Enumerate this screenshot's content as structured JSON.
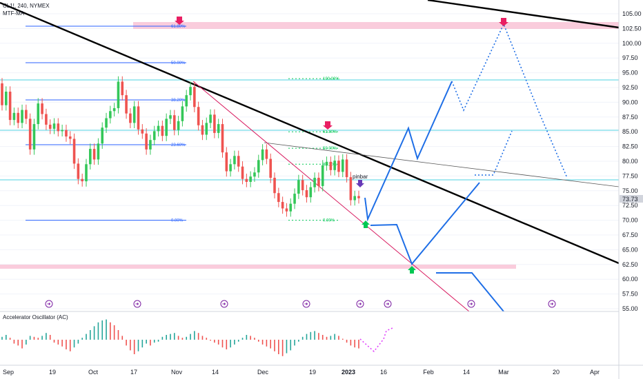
{
  "header": {
    "symbol": "CL1!, 240, NYMEX",
    "indicator": "MTF-MA"
  },
  "oscillator": {
    "title": "Accelerator Oscillator (AC)"
  },
  "price_tag": "73.73",
  "annotation": "pinbar",
  "colors": {
    "up": "#26a69a",
    "up_bright": "#34c759",
    "down": "#ef5350",
    "trend": "#000000",
    "channel": "#d81b60",
    "projection": "#1e6ee6",
    "fib_blue": "#2962ff",
    "fib_green": "#00c853",
    "cyan": "#4dd0e1",
    "zone": "#f8bbd0",
    "marker_pink": "#e91e63",
    "marker_purple": "#673ab7"
  },
  "fib_left": [
    {
      "label": "61.80%",
      "price": 102.9
    },
    {
      "label": "50.00%",
      "price": 96.7
    },
    {
      "label": "38.20%",
      "price": 90.4
    },
    {
      "label": "23.60%",
      "price": 82.8
    },
    {
      "label": "0.00%",
      "price": 70.0
    }
  ],
  "fib_right": [
    {
      "label": "100.00%",
      "price": 94.0
    },
    {
      "label": "61.80%",
      "price": 85.0
    },
    {
      "label": "50.00%",
      "price": 82.2
    },
    {
      "label": "38.20%",
      "price": 79.5
    },
    {
      "label": "0.00%",
      "price": 70.0
    }
  ],
  "chart_data": {
    "type": "candlestick",
    "y_ticks": [
      "105.00",
      "102.50",
      "100.00",
      "97.50",
      "95.00",
      "92.50",
      "90.00",
      "87.50",
      "85.00",
      "82.50",
      "80.00",
      "77.50",
      "75.00",
      "72.50",
      "70.00",
      "67.50",
      "65.00",
      "62.50",
      "60.00",
      "57.50",
      "55.00"
    ],
    "ylim": [
      55,
      107
    ],
    "x_ticks": [
      "Sep",
      "19",
      "Oct",
      "17",
      "Nov",
      "14",
      "Dec",
      "19",
      "2023",
      "16",
      "Feb",
      "14",
      "Mar",
      "20",
      "Apr"
    ],
    "last_price": 73.73,
    "candles": [
      [
        93.2,
        89.5
      ],
      [
        89.5,
        91.8
      ],
      [
        91.8,
        87.0
      ],
      [
        87.0,
        88.2
      ],
      [
        88.2,
        86.5
      ],
      [
        86.5,
        88.7
      ],
      [
        88.7,
        87.2
      ],
      [
        87.2,
        82.0
      ],
      [
        82.0,
        86.3
      ],
      [
        86.3,
        89.8
      ],
      [
        89.8,
        88.0
      ],
      [
        88.0,
        86.2
      ],
      [
        86.2,
        85.5
      ],
      [
        85.5,
        86.4
      ],
      [
        86.4,
        85.1
      ],
      [
        85.1,
        85.3
      ],
      [
        85.3,
        84.2
      ],
      [
        84.2,
        83.8
      ],
      [
        83.8,
        79.6
      ],
      [
        79.6,
        77.0
      ],
      [
        77.0,
        76.6
      ],
      [
        76.6,
        79.5
      ],
      [
        79.5,
        82.1
      ],
      [
        82.1,
        80.3
      ],
      [
        80.3,
        83.0
      ],
      [
        83.0,
        85.7
      ],
      [
        85.7,
        87.3
      ],
      [
        87.3,
        88.5
      ],
      [
        88.5,
        89.0
      ],
      [
        89.0,
        93.5
      ],
      [
        93.5,
        91.2
      ],
      [
        91.2,
        88.1
      ],
      [
        88.1,
        86.5
      ],
      [
        86.5,
        89.3
      ],
      [
        89.3,
        85.4
      ],
      [
        85.4,
        84.7
      ],
      [
        84.7,
        82.0
      ],
      [
        82.0,
        83.6
      ],
      [
        83.6,
        85.1
      ],
      [
        85.1,
        86.0
      ],
      [
        86.0,
        84.3
      ],
      [
        84.3,
        87.2
      ],
      [
        87.2,
        87.8
      ],
      [
        87.8,
        85.3
      ],
      [
        85.3,
        86.8
      ],
      [
        86.8,
        89.3
      ],
      [
        89.3,
        91.2
      ],
      [
        91.2,
        92.6
      ],
      [
        92.6,
        89.2
      ],
      [
        89.2,
        86.1
      ],
      [
        86.1,
        84.5
      ],
      [
        84.5,
        86.5
      ],
      [
        86.5,
        87.9
      ],
      [
        87.9,
        84.8
      ],
      [
        84.8,
        86.3
      ],
      [
        86.3,
        81.5
      ],
      [
        81.5,
        78.3
      ],
      [
        78.3,
        79.5
      ],
      [
        79.5,
        80.9
      ],
      [
        80.9,
        79.1
      ],
      [
        79.1,
        77.0
      ],
      [
        77.0,
        76.5
      ],
      [
        76.5,
        77.4
      ],
      [
        77.4,
        78.1
      ],
      [
        78.1,
        80.2
      ],
      [
        80.2,
        82.0
      ],
      [
        82.0,
        80.4
      ],
      [
        80.4,
        77.2
      ],
      [
        77.2,
        74.6
      ],
      [
        74.6,
        73.1
      ],
      [
        73.1,
        72.0
      ],
      [
        72.0,
        71.5
      ],
      [
        71.5,
        72.8
      ],
      [
        72.8,
        74.5
      ],
      [
        74.5,
        76.8
      ],
      [
        76.8,
        75.1
      ],
      [
        75.1,
        73.9
      ],
      [
        73.9,
        75.6
      ],
      [
        75.6,
        77.2
      ],
      [
        77.2,
        75.8
      ],
      [
        75.8,
        79.3
      ],
      [
        79.3,
        79.9
      ],
      [
        79.9,
        78.5
      ],
      [
        78.5,
        80.1
      ],
      [
        80.1,
        78.2
      ],
      [
        78.2,
        80.3
      ],
      [
        80.3,
        77.3
      ],
      [
        77.3,
        73.4
      ],
      [
        73.4,
        74.1
      ],
      [
        74.1,
        73.73
      ]
    ],
    "ac_values": [
      0.3,
      0.5,
      0.2,
      -0.4,
      -0.6,
      -0.9,
      -0.5,
      0.4,
      0.3,
      0.2,
      0.4,
      0.7,
      0.5,
      -0.3,
      -0.5,
      -0.7,
      -1.0,
      -1.2,
      -0.8,
      -0.4,
      0.2,
      0.6,
      1.0,
      1.4,
      1.8,
      2.0,
      2.1,
      1.8,
      1.5,
      1.0,
      0.4,
      -0.6,
      -1.1,
      -1.5,
      -1.2,
      -0.8,
      -0.4,
      -0.6,
      -0.3,
      -0.2,
      0.3,
      0.5,
      0.6,
      0.7,
      0.4,
      0.2,
      0.3,
      0.6,
      0.9,
      0.7,
      0.4,
      0.2,
      -0.1,
      -0.3,
      -0.5,
      -0.8,
      -1.0,
      -0.8,
      -0.5,
      -0.2,
      0.2,
      0.5,
      0.4,
      0.2,
      -0.2,
      -0.5,
      -0.7,
      -0.9,
      -1.2,
      -1.5,
      -1.7,
      -1.4,
      -1.1,
      -0.6,
      -0.2,
      0.3,
      0.6,
      0.8,
      0.9,
      0.7,
      0.5,
      0.3,
      0.4,
      0.6,
      0.4,
      0.1,
      -0.3,
      -0.6,
      -0.8,
      -0.9
    ]
  }
}
